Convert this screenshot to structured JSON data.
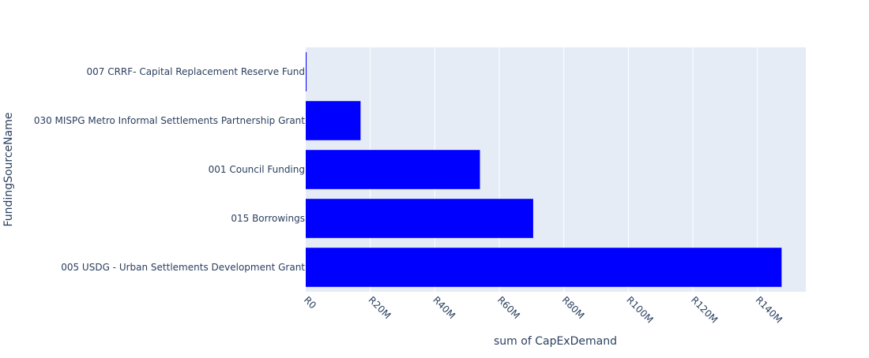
{
  "chart_data": {
    "type": "bar",
    "orientation": "horizontal",
    "title": "",
    "xlabel": "sum of CapExDemand",
    "ylabel": "FundingSourceName",
    "categories": [
      "007 CRRF- Capital Replacement Reserve Fund",
      "030 MISPG Metro Informal Settlements Partnership Grant",
      "001 Council Funding",
      "015 Borrowings",
      "005 USDG - Urban Settlements Development Grant"
    ],
    "values": [
      0.25,
      17,
      54,
      70.5,
      147.5
    ],
    "value_unit": "R millions",
    "xlim": [
      0,
      155
    ],
    "x_ticks": [
      0,
      20,
      40,
      60,
      80,
      100,
      120,
      140
    ],
    "x_tick_labels": [
      "R0",
      "R20M",
      "R40M",
      "R60M",
      "R80M",
      "R100M",
      "R120M",
      "R140M"
    ],
    "bar_color": "#0000ff",
    "plot_background": "#e5ecf6",
    "grid": true,
    "legend": false
  }
}
